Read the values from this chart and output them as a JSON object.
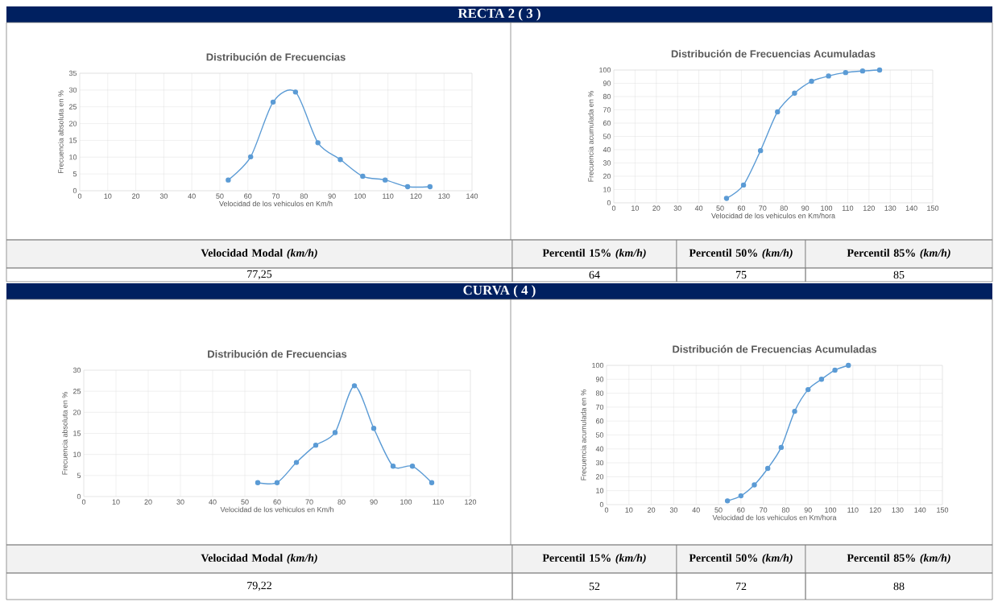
{
  "chart_data": [
    {
      "type": "other",
      "title": "RECTA 2 ( 3 )"
    },
    {
      "type": "line",
      "title": "Distribución de Frecuencias",
      "xlabel": "Velocidad de los vehiculos en Km/h",
      "ylabel": "Frecuencia absoluta en %",
      "x": [
        53,
        61,
        69,
        77,
        85,
        93,
        101,
        109,
        117,
        125
      ],
      "values": [
        3.2,
        10.1,
        26.4,
        29.4,
        14.3,
        9.3,
        4.3,
        3.2,
        1.2,
        1.2
      ],
      "color": "#5b9bd5",
      "marker": "circle",
      "grid": true,
      "xlim": [
        0,
        140
      ],
      "xticks": [
        0,
        10,
        20,
        30,
        40,
        50,
        60,
        70,
        80,
        90,
        100,
        110,
        120,
        130,
        140
      ],
      "ylim": [
        0,
        35
      ],
      "yticks": [
        0,
        5,
        10,
        15,
        20,
        25,
        30,
        35
      ]
    },
    {
      "type": "line",
      "title": "Distribución de Frecuencias Acumuladas",
      "xlabel": "Velocidad de los vehiculos en Km/hora",
      "ylabel": "Frecuencia acumulada en %",
      "x": [
        53,
        61,
        69,
        77,
        85,
        93,
        101,
        109,
        117,
        125
      ],
      "values": [
        3.3,
        13.4,
        39.3,
        68.5,
        82.6,
        91.5,
        95.5,
        98.1,
        99.3,
        100
      ],
      "color": "#5b9bd5",
      "marker": "circle",
      "grid": true,
      "xlim": [
        0,
        150
      ],
      "xticks": [
        0,
        10,
        20,
        30,
        40,
        50,
        60,
        70,
        80,
        90,
        100,
        110,
        120,
        130,
        140,
        150
      ],
      "ylim": [
        0,
        100
      ],
      "yticks": [
        0,
        10,
        20,
        30,
        40,
        50,
        60,
        70,
        80,
        90,
        100
      ]
    },
    {
      "type": "other",
      "annotations": [
        "Velocidad Modal *(km/h)*",
        "Percentil 15% *(km/h)*",
        "Percentil 50% *(km/h)*",
        "Percentil 85% *(km/h)*",
        "77,25",
        "64",
        "75",
        "85"
      ]
    },
    {
      "type": "other",
      "title": "CURVA ( 4 )"
    },
    {
      "type": "line",
      "title": "Distribución de Frecuencias",
      "xlabel": "Velocidad de los vehiculos en Km/h",
      "ylabel": "Frecuencia absoluta en %",
      "x": [
        54,
        60,
        66,
        72,
        78,
        84,
        90,
        96,
        102,
        108
      ],
      "values": [
        3.3,
        3.3,
        8.1,
        12.2,
        15.2,
        26.3,
        16.2,
        7.2,
        7.2,
        3.3
      ],
      "color": "#5b9bd5",
      "marker": "circle",
      "grid": true,
      "xlim": [
        0,
        120
      ],
      "xticks": [
        0,
        10,
        20,
        30,
        40,
        50,
        60,
        70,
        80,
        90,
        100,
        110,
        120
      ],
      "ylim": [
        0,
        30
      ],
      "yticks": [
        0,
        5,
        10,
        15,
        20,
        25,
        30
      ]
    },
    {
      "type": "line",
      "title": "Distribución de Frecuencias Acumuladas",
      "xlabel": "Velocidad de los vehiculos en Km/hora",
      "ylabel": "Frecuencia acumulada en %",
      "x": [
        54,
        60,
        66,
        72,
        78,
        84,
        90,
        96,
        102,
        108
      ],
      "values": [
        2.7,
        6.3,
        14.2,
        26,
        41.1,
        67,
        82.6,
        90,
        96.6,
        100
      ],
      "color": "#5b9bd5",
      "marker": "circle",
      "grid": true,
      "xlim": [
        0,
        150
      ],
      "xticks": [
        0,
        10,
        20,
        30,
        40,
        50,
        60,
        70,
        80,
        90,
        100,
        110,
        120,
        130,
        140,
        150
      ],
      "ylim": [
        0,
        100
      ],
      "yticks": [
        0,
        10,
        20,
        30,
        40,
        50,
        60,
        70,
        80,
        90,
        100
      ]
    },
    {
      "type": "other",
      "annotations": [
        "Velocidad Modal *(km/h)*",
        "Percentil 15% *(km/h)*",
        "Percentil 50% *(km/h)*",
        "Percentil 85% *(km/h)*",
        "79,22",
        "52",
        "72",
        "88"
      ]
    }
  ]
}
